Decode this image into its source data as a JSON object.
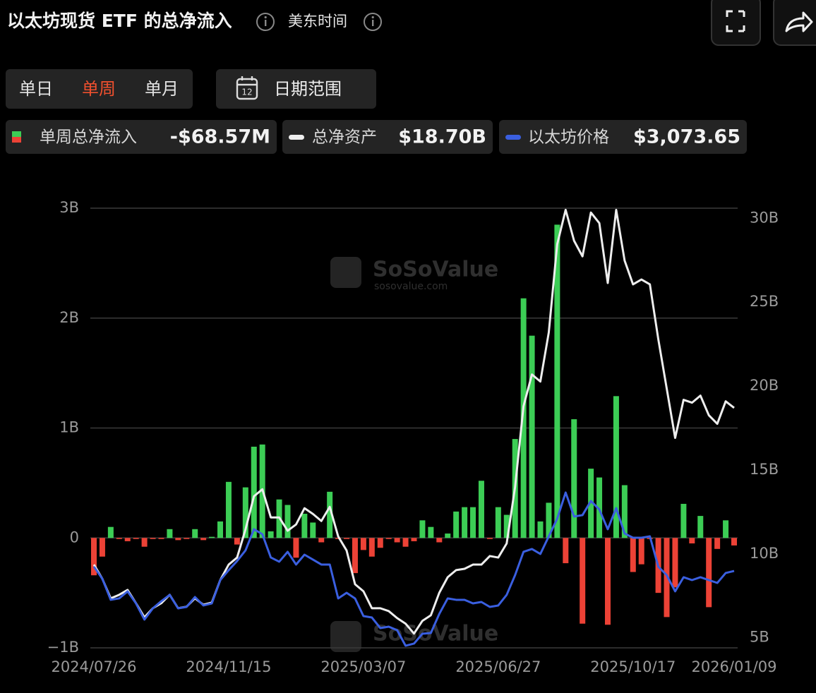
{
  "header": {
    "title": "以太坊现货 ETF 的总净流入",
    "timezone": "美东时间"
  },
  "tabs": [
    "单日",
    "单周",
    "单月"
  ],
  "active_tab": 1,
  "date_range": {
    "icon": "12",
    "label": "日期范围"
  },
  "chart_data": {
    "type": "bar",
    "watermark": "SoSoValue",
    "watermark_url": "sosovalue.com",
    "categories": [
      "2024/07/26",
      null,
      null,
      null,
      null,
      null,
      null,
      null,
      null,
      null,
      null,
      null,
      null,
      null,
      null,
      null,
      "2024/11/15",
      null,
      null,
      null,
      null,
      null,
      null,
      null,
      null,
      null,
      null,
      null,
      null,
      null,
      null,
      null,
      "2025/03/07",
      null,
      null,
      null,
      null,
      null,
      null,
      null,
      null,
      null,
      null,
      null,
      null,
      null,
      null,
      null,
      "2025/06/27",
      null,
      null,
      null,
      null,
      null,
      null,
      null,
      null,
      null,
      null,
      null,
      null,
      null,
      null,
      null,
      "2025/10/17",
      null,
      null,
      null,
      null,
      null,
      null,
      null,
      null,
      null,
      null,
      null,
      "2026/01/09"
    ],
    "ylim": [
      -1,
      3
    ],
    "yticks": [
      {
        "value": -1,
        "label": "−1B"
      },
      0,
      {
        "value": 1,
        "label": "1B"
      },
      {
        "value": 2,
        "label": "2B"
      },
      {
        "value": 3,
        "label": "3B"
      }
    ],
    "y2lim": [
      4.4,
      30.6
    ],
    "y2ticks": [
      {
        "value": 5,
        "label": "5B"
      },
      {
        "value": 10,
        "label": "10B"
      },
      {
        "value": 15,
        "label": "15B"
      },
      {
        "value": 20,
        "label": "20B"
      },
      {
        "value": 25,
        "label": "25B"
      },
      {
        "value": 30,
        "label": "30B"
      }
    ],
    "y3lim": [
      1500,
      10500
    ],
    "grid": true,
    "series": [
      {
        "name": "单周总净流入",
        "legend_value": "-$68.57M",
        "type": "bar",
        "color": "#3ccd55",
        "negative_color": "#ec4236",
        "values": [
          -0.34,
          -0.17,
          0.1,
          -0.01,
          -0.03,
          -0.01,
          -0.08,
          -0.01,
          -0.01,
          0.08,
          -0.02,
          -0.01,
          0.08,
          -0.02,
          0.01,
          0.15,
          0.51,
          -0.06,
          0.46,
          0.83,
          0.85,
          0.06,
          0.35,
          0.3,
          -0.18,
          0.22,
          0.14,
          -0.04,
          0.42,
          -0.01,
          -0.01,
          -0.32,
          -0.11,
          -0.17,
          -0.09,
          -0.01,
          -0.04,
          -0.08,
          -0.03,
          0.16,
          0.1,
          -0.04,
          0.04,
          0.24,
          0.28,
          0.28,
          0.52,
          -0.01,
          0.28,
          0.21,
          0.9,
          2.18,
          1.84,
          0.15,
          0.32,
          2.85,
          -0.23,
          1.08,
          -0.78,
          0.63,
          0.55,
          -0.79,
          1.29,
          0.48,
          -0.31,
          -0.24,
          -0.01,
          -0.5,
          -0.72,
          -0.45,
          0.31,
          -0.05,
          0.2,
          -0.63,
          -0.1,
          0.16,
          -0.06857
        ]
      },
      {
        "name": "总净资产",
        "legend_value": "$18.70B",
        "type": "line",
        "axis": "y2",
        "color": "#eeeeee",
        "values": [
          9.36,
          8.52,
          7.35,
          7.56,
          7.85,
          7.06,
          6.22,
          6.76,
          7.06,
          7.56,
          6.76,
          6.85,
          7.35,
          6.97,
          7.1,
          8.44,
          9.36,
          9.78,
          11.46,
          13.43,
          13.85,
          12.17,
          12.17,
          11.38,
          11.75,
          12.72,
          12.38,
          11.96,
          12.8,
          11.04,
          10.2,
          8.19,
          7.77,
          6.76,
          6.76,
          6.59,
          6.17,
          5.84,
          5.25,
          6.01,
          6.34,
          7.68,
          8.61,
          9.03,
          9.11,
          9.36,
          9.36,
          9.87,
          9.78,
          10.62,
          13.98,
          18.8,
          20.69,
          20.27,
          23.2,
          28.45,
          30.5,
          28.66,
          27.73,
          30.34,
          29.71,
          26.14,
          30.5,
          27.48,
          26.06,
          26.35,
          26.06,
          22.79,
          19.85,
          16.91,
          19.18,
          19.01,
          19.43,
          18.26,
          17.75,
          19.09,
          18.7
        ]
      },
      {
        "name": "以太坊价格",
        "legend_value": "$3,073.65",
        "type": "line",
        "axis": "y3",
        "color": "#3a5fe0",
        "values": [
          3162,
          2916,
          2483,
          2512,
          2656,
          2410,
          2078,
          2309,
          2454,
          2584,
          2309,
          2338,
          2540,
          2367,
          2410,
          2887,
          3090,
          3277,
          3494,
          3928,
          3826,
          3350,
          3263,
          3465,
          3205,
          3407,
          3306,
          3205,
          3205,
          2512,
          2627,
          2512,
          2150,
          2121,
          1905,
          1934,
          1861,
          1543,
          1587,
          1789,
          1803,
          2194,
          2512,
          2483,
          2483,
          2410,
          2439,
          2338,
          2367,
          2584,
          2988,
          3465,
          3523,
          3422,
          3783,
          4144,
          4679,
          4188,
          4217,
          4506,
          4332,
          3928,
          4361,
          3841,
          3754,
          3754,
          3783,
          3162,
          2988,
          2656,
          2945,
          2887,
          2945,
          2887,
          2829,
          3032,
          3073.65
        ]
      }
    ]
  }
}
